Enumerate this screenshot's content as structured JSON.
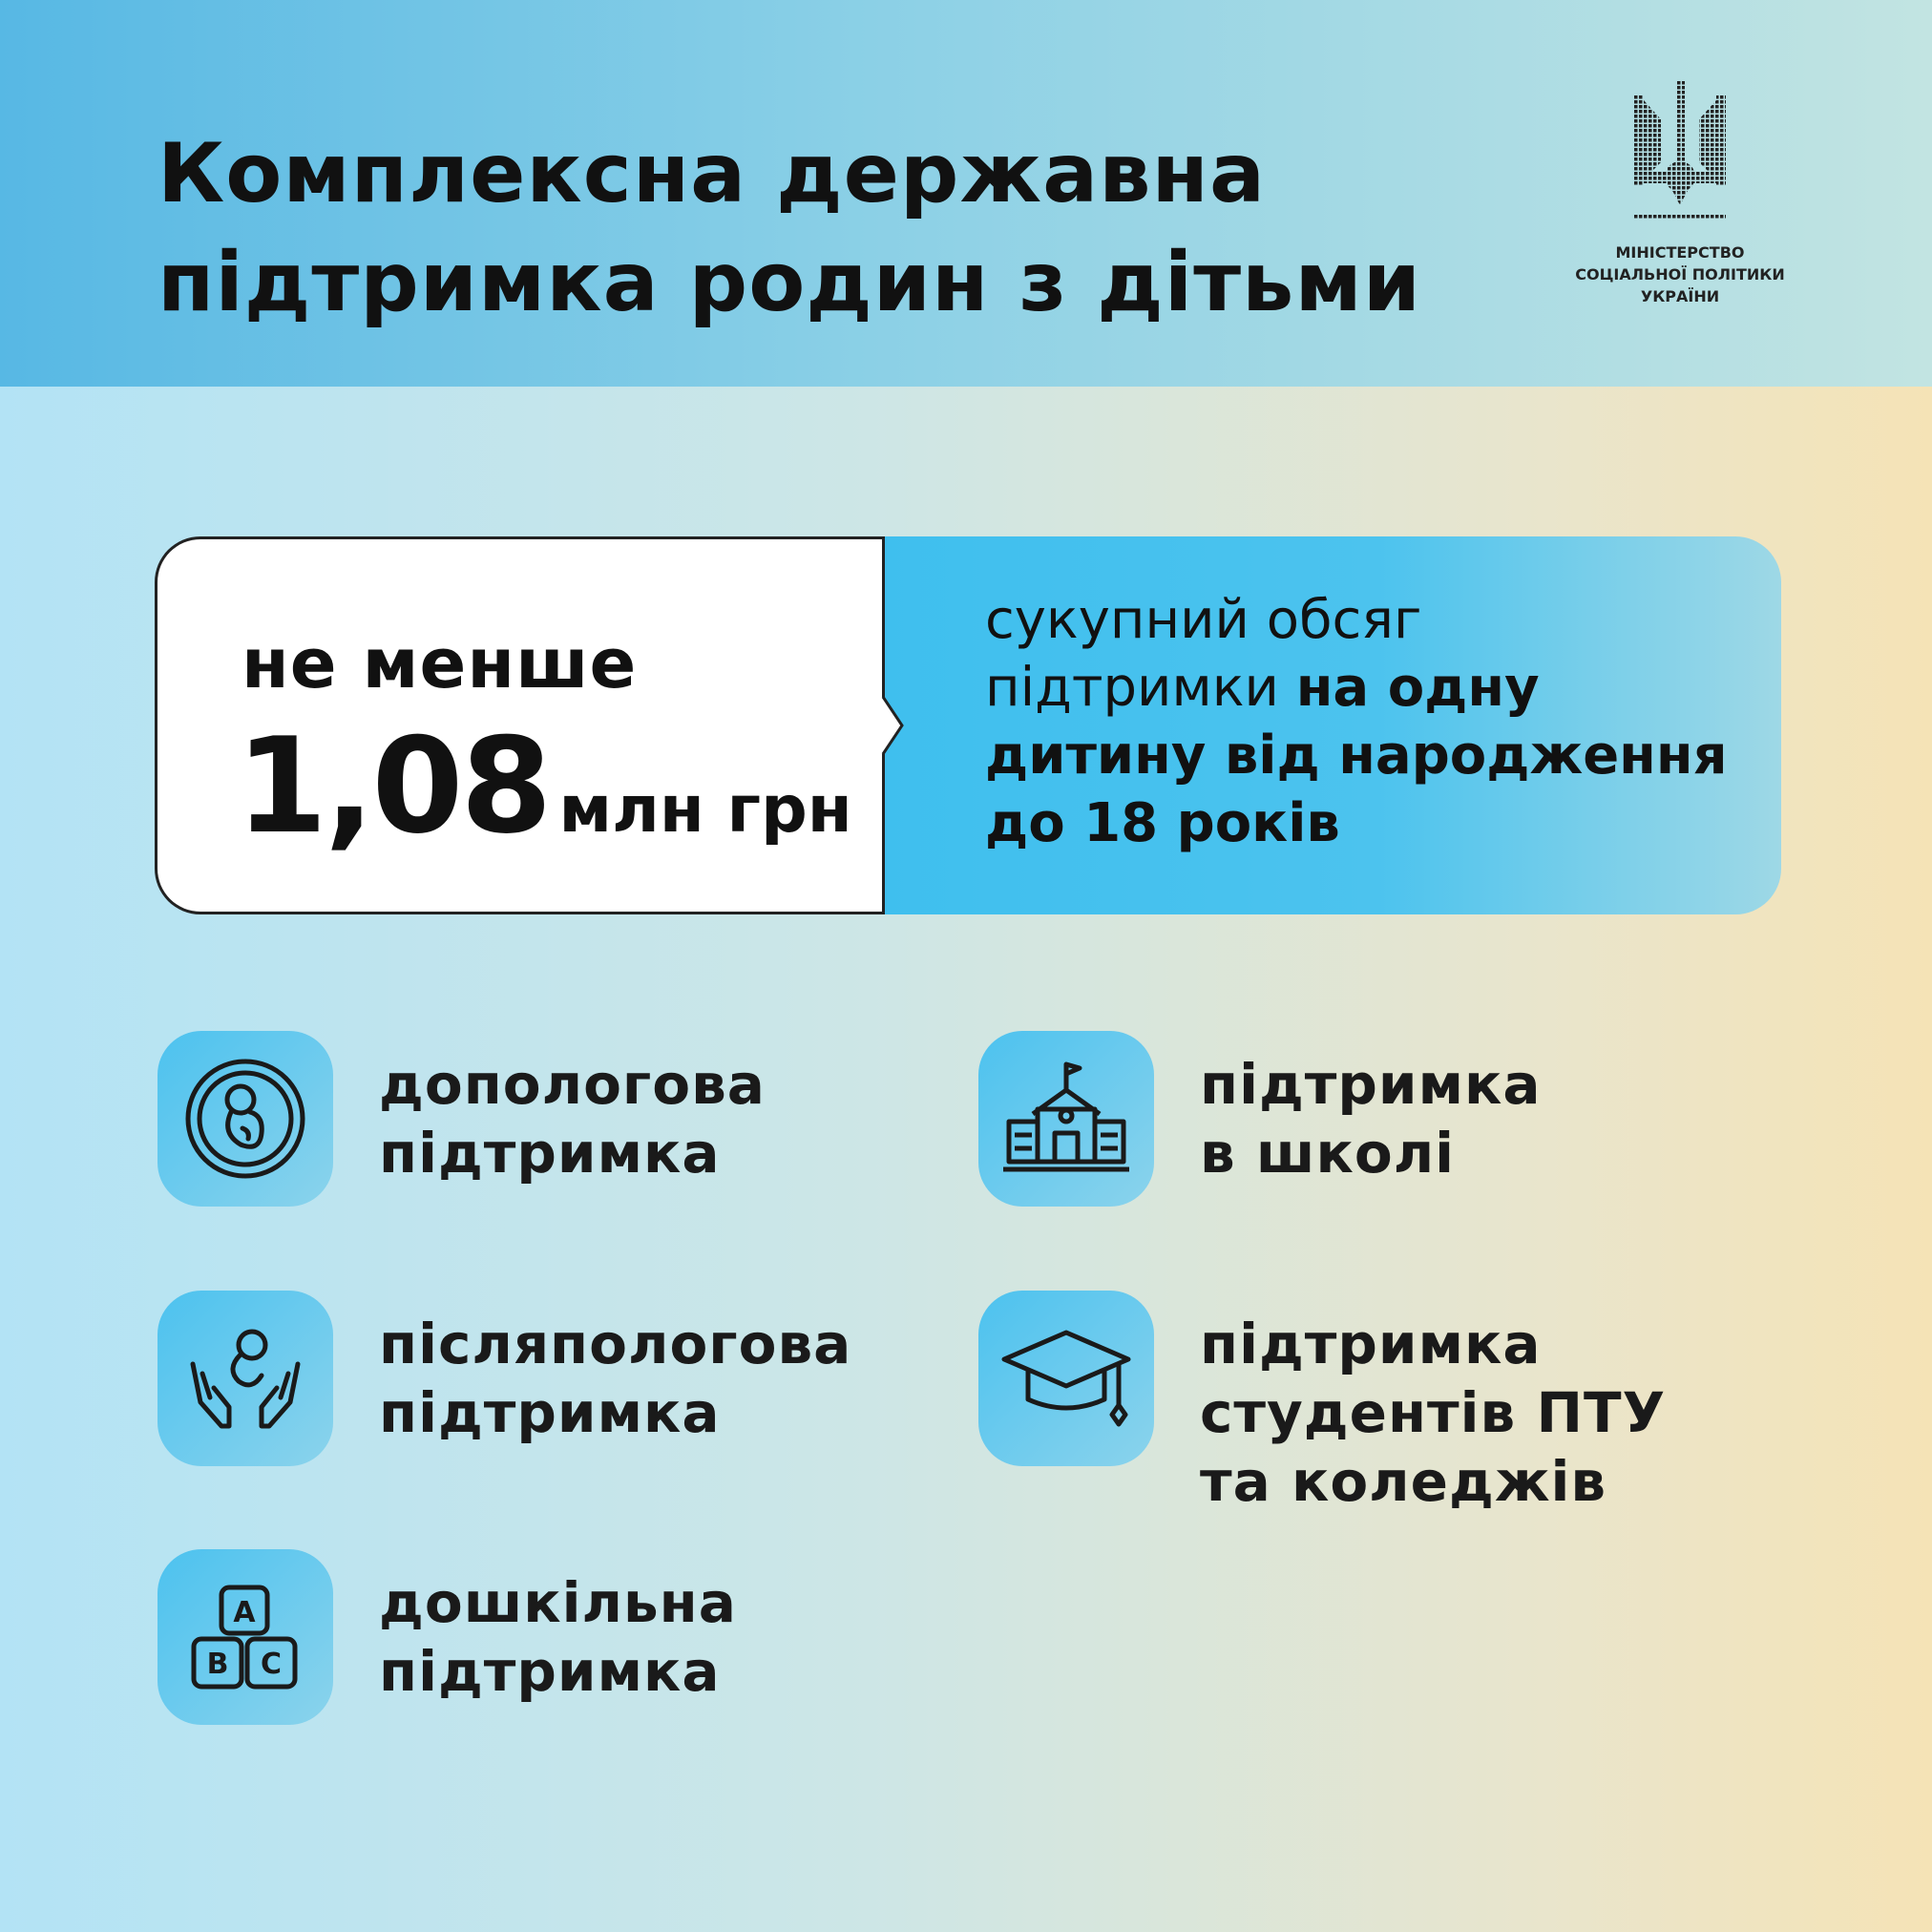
{
  "header": {
    "title_line1": "Комплексна державна",
    "title_line2": "підтримка родин з дітьми",
    "logo": {
      "line1": "МІНІСТЕРСТВО",
      "line2": "СОЦІАЛЬНОЇ ПОЛІТИКИ",
      "line3": "УКРАЇНИ"
    }
  },
  "summary": {
    "prefix": "не менше",
    "amount": "1,08",
    "unit": "млн грн",
    "desc_regular1": "сукупний обсяг",
    "desc_regular2": "підтримки ",
    "desc_bold2": "на одну",
    "desc_bold3": "дитину від народження",
    "desc_bold4": "до 18 років"
  },
  "items": [
    {
      "icon": "embryo-icon",
      "line1": "допологова",
      "line2": "підтримка"
    },
    {
      "icon": "baby-in-hands-icon",
      "line1": "післяпологова",
      "line2": "підтримка"
    },
    {
      "icon": "abc-blocks-icon",
      "line1": "дошкільна",
      "line2": "підтримка"
    },
    {
      "icon": "school-icon",
      "line1": "підтримка",
      "line2": "в школі"
    },
    {
      "icon": "graduation-cap-icon",
      "line1": "підтримка",
      "line2": "студентів ПТУ",
      "line3": "та коледжів"
    }
  ],
  "colors": {
    "accent": "#42c0ee",
    "text": "#111111"
  }
}
